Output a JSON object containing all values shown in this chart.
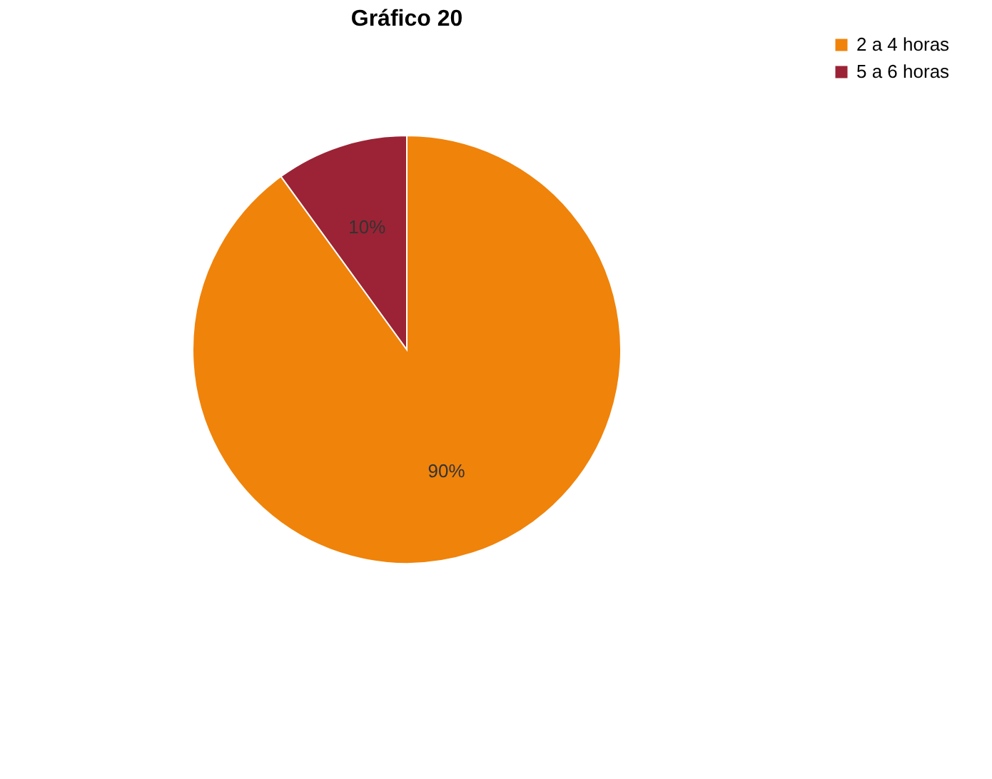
{
  "chart_data": {
    "type": "pie",
    "title": "Gráfico 20",
    "categories": [
      "2 a 4 horas",
      "5 a 6 horas"
    ],
    "values": [
      90,
      10
    ],
    "value_labels": [
      "90%",
      "10%"
    ],
    "colors": [
      "#f0830a",
      "#9b2335"
    ],
    "legend": "right"
  }
}
